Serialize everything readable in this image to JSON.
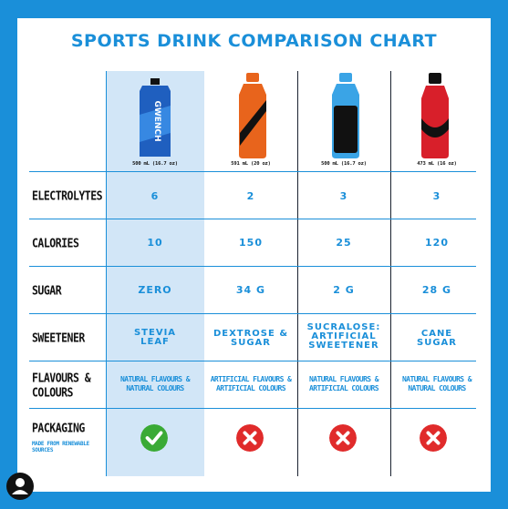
{
  "title": "SPORTS DRINK COMPARISON CHART",
  "products": [
    {
      "volume": "500 mL (16.7 oz)",
      "bottle_color": "#1f5fbf",
      "brand_text": "GWENCH"
    },
    {
      "volume": "591 mL (20 oz)",
      "bottle_color": "#e8641c"
    },
    {
      "volume": "500 mL (16.7 oz)",
      "bottle_color": "#3aa4e6"
    },
    {
      "volume": "473 mL (16 oz)",
      "bottle_color": "#d81f2a"
    }
  ],
  "rows": {
    "electrolytes": {
      "label": "ELECTROLYTES",
      "values": [
        "6",
        "2",
        "3",
        "3"
      ]
    },
    "calories": {
      "label": "CALORIES",
      "values": [
        "10",
        "150",
        "25",
        "120"
      ]
    },
    "sugar": {
      "label": "SUGAR",
      "values": [
        "ZERO",
        "34 G",
        "2 G",
        "28 G"
      ]
    },
    "sweetener": {
      "label": "SWEETENER",
      "values": [
        [
          "STEVIA",
          "LEAF"
        ],
        [
          "DEXTROSE &",
          "SUGAR"
        ],
        [
          "SUCRALOSE:",
          "ARTIFICIAL",
          "SWEETENER"
        ],
        [
          "CANE",
          "SUGAR"
        ]
      ]
    },
    "flavours": {
      "label": [
        "FLAVOURS &",
        "COLOURS"
      ],
      "values": [
        [
          "NATURAL FLAVOURS &",
          "NATURAL COLOURS"
        ],
        [
          "ARTIFICIAL FLAVOURS &",
          "ARTIFICIAL COLOURS"
        ],
        [
          "NATURAL FLAVOURS &",
          "ARTIFICIAL COLOURS"
        ],
        [
          "NATURAL FLAVOURS &",
          "NATURAL COLOURS"
        ]
      ]
    },
    "packaging": {
      "label": "PACKAGING",
      "note": [
        "MADE FROM RENEWABLE",
        "SOURCES"
      ],
      "values": [
        "check",
        "cross",
        "cross",
        "cross"
      ]
    }
  },
  "colors": {
    "background": "#1a8fd9",
    "accent": "#1a8fd9",
    "check": "#3aaa35",
    "cross": "#e02b2b"
  }
}
